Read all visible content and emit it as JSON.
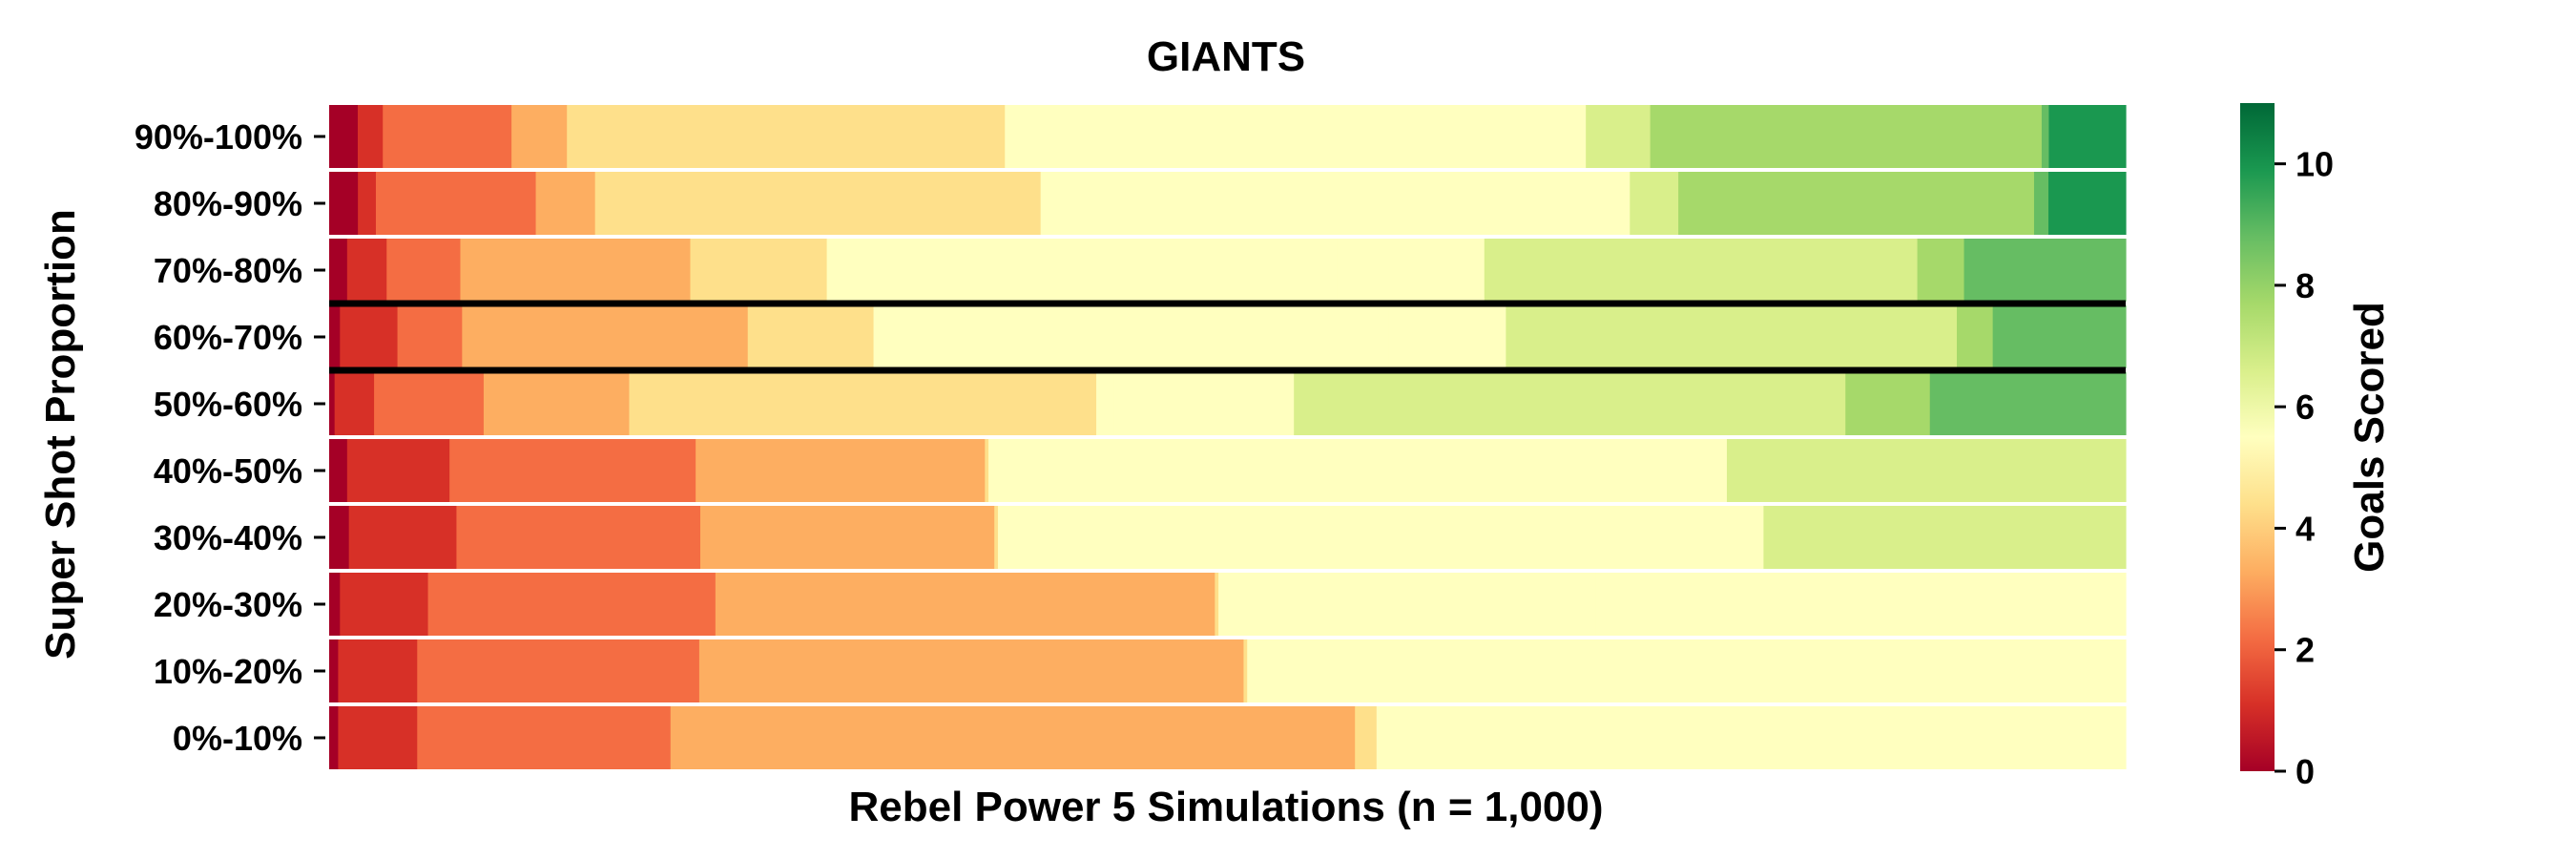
{
  "chart_data": {
    "type": "heatmap",
    "title": "GIANTS",
    "xlabel": "Rebel Power 5 Simulations (n = 1,000)",
    "ylabel": "Super Shot Proportion",
    "colorbar": {
      "label": "Goals Scored",
      "min": 0,
      "max": 11,
      "ticks": [
        "0",
        "2",
        "4",
        "6",
        "8",
        "10"
      ],
      "colormap": "RdYlGn"
    },
    "rows": [
      {
        "label": "90%-100%",
        "counts": [
          16,
          14,
          72,
          31,
          245,
          27,
          298,
          36,
          219,
          4,
          43
        ]
      },
      {
        "label": "80%-90%",
        "counts": [
          16,
          10,
          89,
          33,
          248,
          29,
          299,
          27,
          198,
          8,
          43
        ]
      },
      {
        "label": "70%-80%",
        "counts": [
          10,
          22,
          41,
          128,
          76,
          284,
          82,
          241,
          26,
          90,
          0
        ]
      },
      {
        "label": "60%-70%",
        "counts": [
          6,
          32,
          36,
          159,
          70,
          287,
          65,
          251,
          20,
          74,
          0
        ]
      },
      {
        "label": "50%-60%",
        "counts": [
          3,
          22,
          61,
          81,
          260,
          10,
          100,
          307,
          47,
          109,
          0
        ]
      },
      {
        "label": "40%-50%",
        "counts": [
          10,
          57,
          137,
          161,
          2,
          298,
          113,
          222,
          0,
          0,
          0
        ]
      },
      {
        "label": "30%-40%",
        "counts": [
          11,
          60,
          136,
          164,
          2,
          310,
          117,
          202,
          0,
          0,
          0
        ]
      },
      {
        "label": "20%-30%",
        "counts": [
          6,
          49,
          160,
          278,
          2,
          210,
          295,
          0,
          0,
          0,
          0
        ]
      },
      {
        "label": "10%-20%",
        "counts": [
          5,
          44,
          157,
          303,
          2,
          192,
          297,
          0,
          0,
          0,
          0
        ]
      },
      {
        "label": "0%-10%",
        "counts": [
          5,
          44,
          141,
          381,
          12,
          417,
          0,
          0,
          0,
          0,
          0
        ]
      }
    ],
    "highlighted_row": "60%-70%"
  }
}
